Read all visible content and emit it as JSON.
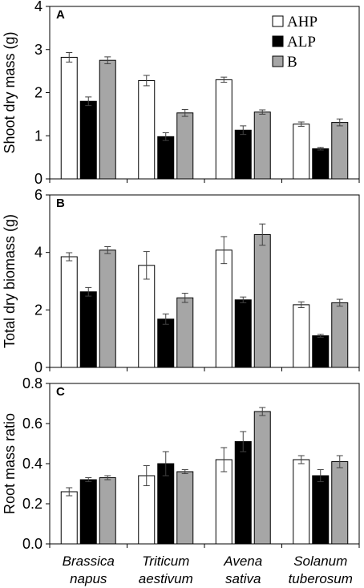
{
  "chart_data": [
    {
      "type": "bar",
      "panel_label": "A",
      "ylabel": "Shoot dry mass (g)",
      "ylim": [
        0,
        4
      ],
      "yticks": [
        0,
        1,
        2,
        3,
        4
      ],
      "ytick_labels": [
        "0",
        "1",
        "2",
        "3",
        "4"
      ],
      "categories": [
        "Brassica napus",
        "Triticum aestivum",
        "Avena sativa",
        "Solanum tuberosum"
      ],
      "series": [
        {
          "name": "AHP",
          "values": [
            2.82,
            2.28,
            2.3,
            1.27
          ],
          "errors": [
            0.11,
            0.12,
            0.06,
            0.05
          ]
        },
        {
          "name": "ALP",
          "values": [
            1.8,
            0.98,
            1.13,
            0.7
          ],
          "errors": [
            0.1,
            0.09,
            0.1,
            0.03
          ]
        },
        {
          "name": "B",
          "values": [
            2.75,
            1.53,
            1.55,
            1.31
          ],
          "errors": [
            0.08,
            0.08,
            0.05,
            0.08
          ]
        }
      ],
      "legend": {
        "placement": "top-right",
        "entries": [
          "AHP",
          "ALP",
          "B"
        ]
      }
    },
    {
      "type": "bar",
      "panel_label": "B",
      "ylabel": "Total dry biomass (g)",
      "ylim": [
        0,
        6
      ],
      "yticks": [
        0,
        2,
        4,
        6
      ],
      "ytick_labels": [
        "0",
        "2",
        "4",
        "6"
      ],
      "categories": [
        "Brassica napus",
        "Triticum aestivum",
        "Avena sativa",
        "Solanum tuberosum"
      ],
      "series": [
        {
          "name": "AHP",
          "values": [
            3.85,
            3.55,
            4.08,
            2.18
          ],
          "errors": [
            0.14,
            0.48,
            0.47,
            0.1
          ]
        },
        {
          "name": "ALP",
          "values": [
            2.63,
            1.68,
            2.35,
            1.1
          ],
          "errors": [
            0.15,
            0.18,
            0.1,
            0.05
          ]
        },
        {
          "name": "B",
          "values": [
            4.08,
            2.42,
            4.62,
            2.25
          ],
          "errors": [
            0.12,
            0.16,
            0.37,
            0.12
          ]
        }
      ]
    },
    {
      "type": "bar",
      "panel_label": "C",
      "ylabel": "Root mass ratio",
      "ylim": [
        0,
        0.8
      ],
      "yticks": [
        0,
        0.2,
        0.4,
        0.6,
        0.8
      ],
      "ytick_labels": [
        "0.0",
        "0.2",
        "0.4",
        "0.6",
        "0.8"
      ],
      "categories": [
        "Brassica napus",
        "Triticum aestivum",
        "Avena sativa",
        "Solanum tuberosum"
      ],
      "series": [
        {
          "name": "AHP",
          "values": [
            0.26,
            0.34,
            0.42,
            0.42
          ],
          "errors": [
            0.02,
            0.05,
            0.06,
            0.02
          ]
        },
        {
          "name": "ALP",
          "values": [
            0.32,
            0.4,
            0.51,
            0.34
          ],
          "errors": [
            0.01,
            0.06,
            0.05,
            0.03
          ]
        },
        {
          "name": "B",
          "values": [
            0.33,
            0.36,
            0.66,
            0.41
          ],
          "errors": [
            0.01,
            0.01,
            0.02,
            0.03
          ]
        }
      ]
    }
  ],
  "x_category_lines": [
    [
      "Brassica",
      "napus"
    ],
    [
      "Triticum",
      "aestivum"
    ],
    [
      "Avena",
      "sativa"
    ],
    [
      "Solanum",
      "tuberosum"
    ]
  ],
  "colors": {
    "AHP": "#ffffff",
    "ALP": "#000000",
    "B": "#a6a6a6",
    "outline": "#000000",
    "errorbar": "#404040"
  }
}
